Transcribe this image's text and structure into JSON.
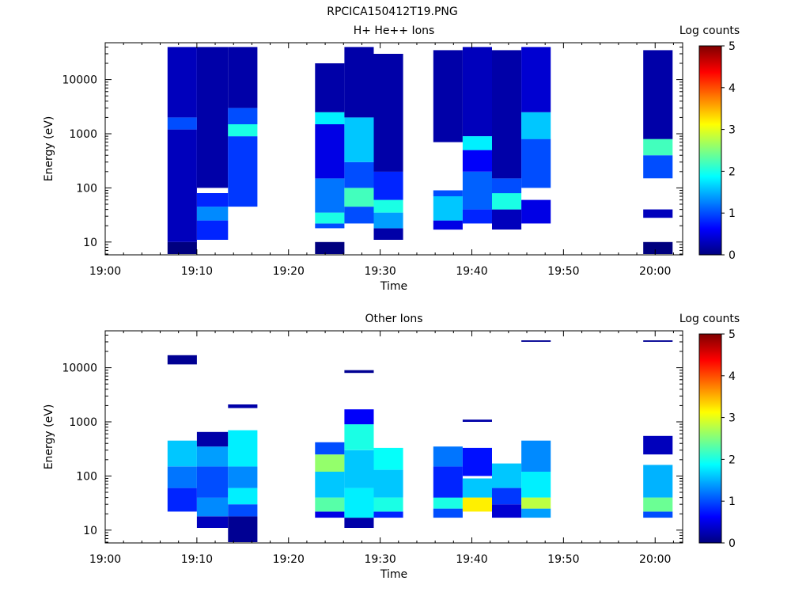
{
  "figure_title": "RPCICA150412T19.PNG",
  "chart_data": [
    {
      "type": "heatmap",
      "title": "H+ He++ Ions",
      "xlabel": "Time",
      "ylabel": "Energy (eV)",
      "x_ticks": [
        "19:00",
        "19:10",
        "19:20",
        "19:30",
        "19:40",
        "19:50",
        "20:00"
      ],
      "x_range_minutes": [
        0,
        63
      ],
      "y_scale": "log",
      "y_range": [
        5.8,
        48000
      ],
      "y_ticks": [
        "10",
        "100",
        "1000",
        "10000"
      ],
      "colorbar_label": "Log counts",
      "colorbar_ticks": [
        "0",
        "1",
        "2",
        "3",
        "4",
        "5"
      ],
      "colorbar_range": [
        0,
        5
      ],
      "columns": [
        {
          "t0": 6.8,
          "t1": 10.0,
          "bins": [
            [
              6,
              10,
              0
            ],
            [
              10,
              1200,
              0.3
            ],
            [
              1200,
              2000,
              1.0
            ],
            [
              2000,
              40000,
              0.3
            ]
          ]
        },
        {
          "t0": 10.0,
          "t1": 13.4,
          "bins": [
            [
              11,
              25,
              0.8
            ],
            [
              25,
              45,
              1.3
            ],
            [
              45,
              80,
              0.8
            ],
            [
              100,
              40000,
              0.2
            ]
          ]
        },
        {
          "t0": 13.4,
          "t1": 16.6,
          "bins": [
            [
              45,
              900,
              0.9
            ],
            [
              900,
              1500,
              2.0
            ],
            [
              1500,
              3000,
              1.0
            ],
            [
              3000,
              40000,
              0.2
            ]
          ]
        },
        {
          "t0": 22.9,
          "t1": 26.1,
          "bins": [
            [
              6,
              10,
              0
            ],
            [
              18,
              22,
              1.0
            ],
            [
              22,
              35,
              2.0
            ],
            [
              35,
              150,
              1.2
            ],
            [
              150,
              1500,
              0.5
            ],
            [
              1500,
              2500,
              1.8
            ],
            [
              2500,
              20000,
              0.2
            ]
          ]
        },
        {
          "t0": 26.1,
          "t1": 29.3,
          "bins": [
            [
              22,
              45,
              1.0
            ],
            [
              45,
              100,
              2.2
            ],
            [
              100,
              300,
              1.0
            ],
            [
              300,
              2000,
              1.6
            ],
            [
              2000,
              40000,
              0.2
            ]
          ]
        },
        {
          "t0": 29.3,
          "t1": 32.5,
          "bins": [
            [
              11,
              18,
              0.2
            ],
            [
              18,
              35,
              1.4
            ],
            [
              35,
              60,
              2.0
            ],
            [
              60,
              200,
              0.8
            ],
            [
              200,
              30000,
              0.2
            ]
          ]
        },
        {
          "t0": 35.8,
          "t1": 39.0,
          "bins": [
            [
              17,
              25,
              0.5
            ],
            [
              25,
              70,
              1.6
            ],
            [
              70,
              90,
              1.0
            ],
            [
              700,
              35000,
              0.2
            ]
          ]
        },
        {
          "t0": 39.0,
          "t1": 42.2,
          "bins": [
            [
              22,
              40,
              0.8
            ],
            [
              40,
              200,
              1.1
            ],
            [
              200,
              500,
              0.6
            ],
            [
              500,
              900,
              1.8
            ],
            [
              900,
              40000,
              0.3
            ]
          ]
        },
        {
          "t0": 42.2,
          "t1": 45.4,
          "bins": [
            [
              17,
              40,
              0.3
            ],
            [
              40,
              80,
              2.0
            ],
            [
              80,
              150,
              1.0
            ],
            [
              150,
              35000,
              0.2
            ]
          ]
        },
        {
          "t0": 45.4,
          "t1": 48.6,
          "bins": [
            [
              22,
              60,
              0.5
            ],
            [
              100,
              800,
              1.0
            ],
            [
              800,
              2500,
              1.6
            ],
            [
              2500,
              40000,
              0.4
            ]
          ]
        },
        {
          "t0": 58.7,
          "t1": 61.9,
          "bins": [
            [
              6,
              10,
              0
            ],
            [
              28,
              40,
              0.3
            ],
            [
              150,
              400,
              1.0
            ],
            [
              400,
              800,
              2.2
            ],
            [
              800,
              35000,
              0.2
            ]
          ]
        }
      ]
    },
    {
      "type": "heatmap",
      "title": "Other Ions",
      "xlabel": "Time",
      "ylabel": "Energy (eV)",
      "x_ticks": [
        "19:00",
        "19:10",
        "19:20",
        "19:30",
        "19:40",
        "19:50",
        "20:00"
      ],
      "x_range_minutes": [
        0,
        63
      ],
      "y_scale": "log",
      "y_range": [
        5.8,
        48000
      ],
      "y_ticks": [
        "10",
        "100",
        "1000",
        "10000"
      ],
      "colorbar_label": "Log counts",
      "colorbar_ticks": [
        "0",
        "1",
        "2",
        "3",
        "4",
        "5"
      ],
      "colorbar_range": [
        0,
        5
      ],
      "columns": [
        {
          "t0": 6.8,
          "t1": 10.0,
          "bins": [
            [
              22,
              60,
              0.8
            ],
            [
              60,
              150,
              1.2
            ],
            [
              150,
              450,
              1.6
            ],
            [
              11500,
              17000,
              0.1
            ]
          ]
        },
        {
          "t0": 10.0,
          "t1": 13.4,
          "bins": [
            [
              11,
              18,
              0.3
            ],
            [
              18,
              40,
              1.3
            ],
            [
              40,
              150,
              1.0
            ],
            [
              150,
              350,
              1.4
            ],
            [
              350,
              650,
              0.2
            ]
          ]
        },
        {
          "t0": 13.4,
          "t1": 16.6,
          "bins": [
            [
              6,
              18,
              0.1
            ],
            [
              18,
              30,
              1.0
            ],
            [
              30,
              60,
              1.8
            ],
            [
              60,
              150,
              1.3
            ],
            [
              150,
              700,
              1.8
            ],
            [
              1800,
              2100,
              0.2
            ]
          ]
        },
        {
          "t0": 22.9,
          "t1": 26.1,
          "bins": [
            [
              17,
              22,
              0.5
            ],
            [
              22,
              40,
              2.3
            ],
            [
              40,
              120,
              1.6
            ],
            [
              120,
              250,
              2.6
            ],
            [
              250,
              420,
              1.0
            ]
          ]
        },
        {
          "t0": 26.1,
          "t1": 29.3,
          "bins": [
            [
              11,
              17,
              0.2
            ],
            [
              17,
              60,
              1.8
            ],
            [
              60,
              300,
              1.6
            ],
            [
              300,
              900,
              2.0
            ],
            [
              900,
              1700,
              0.6
            ],
            [
              8000,
              9000,
              0.1
            ]
          ]
        },
        {
          "t0": 29.3,
          "t1": 32.5,
          "bins": [
            [
              17,
              22,
              0.8
            ],
            [
              22,
              40,
              2.0
            ],
            [
              40,
              130,
              1.6
            ],
            [
              130,
              330,
              1.9
            ]
          ]
        },
        {
          "t0": 35.8,
          "t1": 39.0,
          "bins": [
            [
              17,
              25,
              1.0
            ],
            [
              25,
              40,
              2.0
            ],
            [
              40,
              150,
              0.8
            ],
            [
              150,
              350,
              1.2
            ]
          ]
        },
        {
          "t0": 39.0,
          "t1": 42.2,
          "bins": [
            [
              22,
              40,
              3.2
            ],
            [
              40,
              90,
              1.6
            ],
            [
              100,
              330,
              0.7
            ],
            [
              1000,
              1100,
              0.2
            ]
          ]
        },
        {
          "t0": 42.2,
          "t1": 45.4,
          "bins": [
            [
              17,
              30,
              0.4
            ],
            [
              30,
              60,
              0.9
            ],
            [
              60,
              170,
              1.6
            ]
          ]
        },
        {
          "t0": 45.4,
          "t1": 48.6,
          "bins": [
            [
              17,
              25,
              1.4
            ],
            [
              25,
              40,
              2.8
            ],
            [
              40,
              120,
              1.8
            ],
            [
              120,
              450,
              1.3
            ],
            [
              30000,
              32000,
              0.1
            ]
          ]
        },
        {
          "t0": 58.7,
          "t1": 61.9,
          "bins": [
            [
              17,
              22,
              1.0
            ],
            [
              22,
              40,
              2.4
            ],
            [
              40,
              160,
              1.5
            ],
            [
              250,
              550,
              0.3
            ],
            [
              30000,
              32000,
              0.1
            ]
          ]
        }
      ]
    }
  ]
}
